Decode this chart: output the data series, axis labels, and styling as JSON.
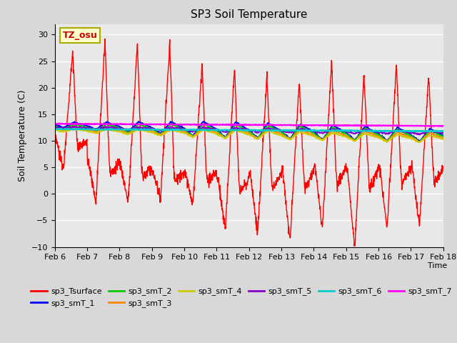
{
  "title": "SP3 Soil Temperature",
  "ylabel": "Soil Temperature (C)",
  "xlabel": "Time",
  "ylim": [
    -10,
    32
  ],
  "x_tick_labels": [
    "Feb 6",
    "Feb 7",
    "Feb 8",
    "Feb 9",
    "Feb 10",
    "Feb 11",
    "Feb 12",
    "Feb 13",
    "Feb 14",
    "Feb 15",
    "Feb 16",
    "Feb 17",
    "Feb 18"
  ],
  "annotation_text": "TZ_osu",
  "annotation_color": "#cc0000",
  "annotation_bg": "#ffffcc",
  "annotation_border": "#aaaa00",
  "series_colors": {
    "sp3_Tsurface": "#ff0000",
    "sp3_smT_1": "#0000ff",
    "sp3_smT_2": "#00cc00",
    "sp3_smT_3": "#ff8800",
    "sp3_smT_4": "#cccc00",
    "sp3_smT_5": "#8800cc",
    "sp3_smT_6": "#00cccc",
    "sp3_smT_7": "#ff00ff"
  },
  "fig_bg_color": "#d8d8d8",
  "plot_bg_color": "#e8e8e8"
}
